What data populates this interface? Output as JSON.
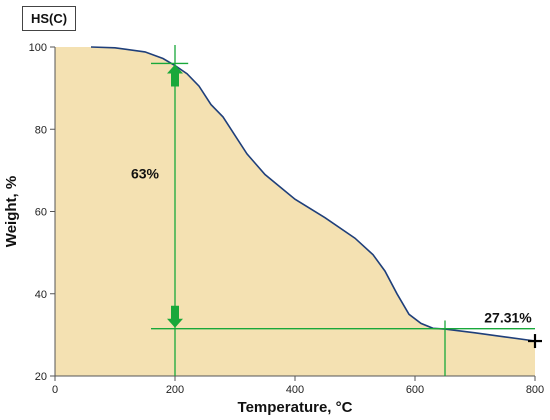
{
  "chart_data": {
    "type": "area",
    "title": "HS(C)",
    "xlabel": "Temperature, °C",
    "ylabel": "Weight, %",
    "xlim": [
      0,
      800
    ],
    "ylim": [
      20,
      100
    ],
    "xticks": [
      "0",
      "200",
      "400",
      "600",
      "800"
    ],
    "yticks": [
      "20",
      "40",
      "60",
      "80",
      "100"
    ],
    "grid": false,
    "fill_color": "#f4e1b2",
    "line_color": "#1f3f7a",
    "marker_color": "#18a83a",
    "series": [
      {
        "x": [
          60,
          100,
          150,
          180,
          200,
          220,
          240,
          260,
          280,
          300,
          320,
          350,
          400,
          450,
          500,
          530,
          550,
          570,
          590,
          610,
          630,
          650,
          700,
          750,
          800
        ],
        "y": [
          100,
          99.8,
          98.8,
          97.2,
          95.5,
          93.5,
          90.5,
          86,
          83,
          78.5,
          74,
          69,
          63,
          58.5,
          53.5,
          49.5,
          45.5,
          40,
          35,
          32.8,
          31.6,
          31.4,
          30.5,
          29.5,
          28.5
        ]
      }
    ],
    "annotations": [
      {
        "text": "63%",
        "x": 150,
        "y": 68
      },
      {
        "text": "27.31%",
        "x": 755,
        "y": 33
      }
    ],
    "reference_lines": {
      "vertical_x": [
        200,
        650
      ],
      "horizontal_y": [
        96,
        31.5
      ]
    }
  }
}
